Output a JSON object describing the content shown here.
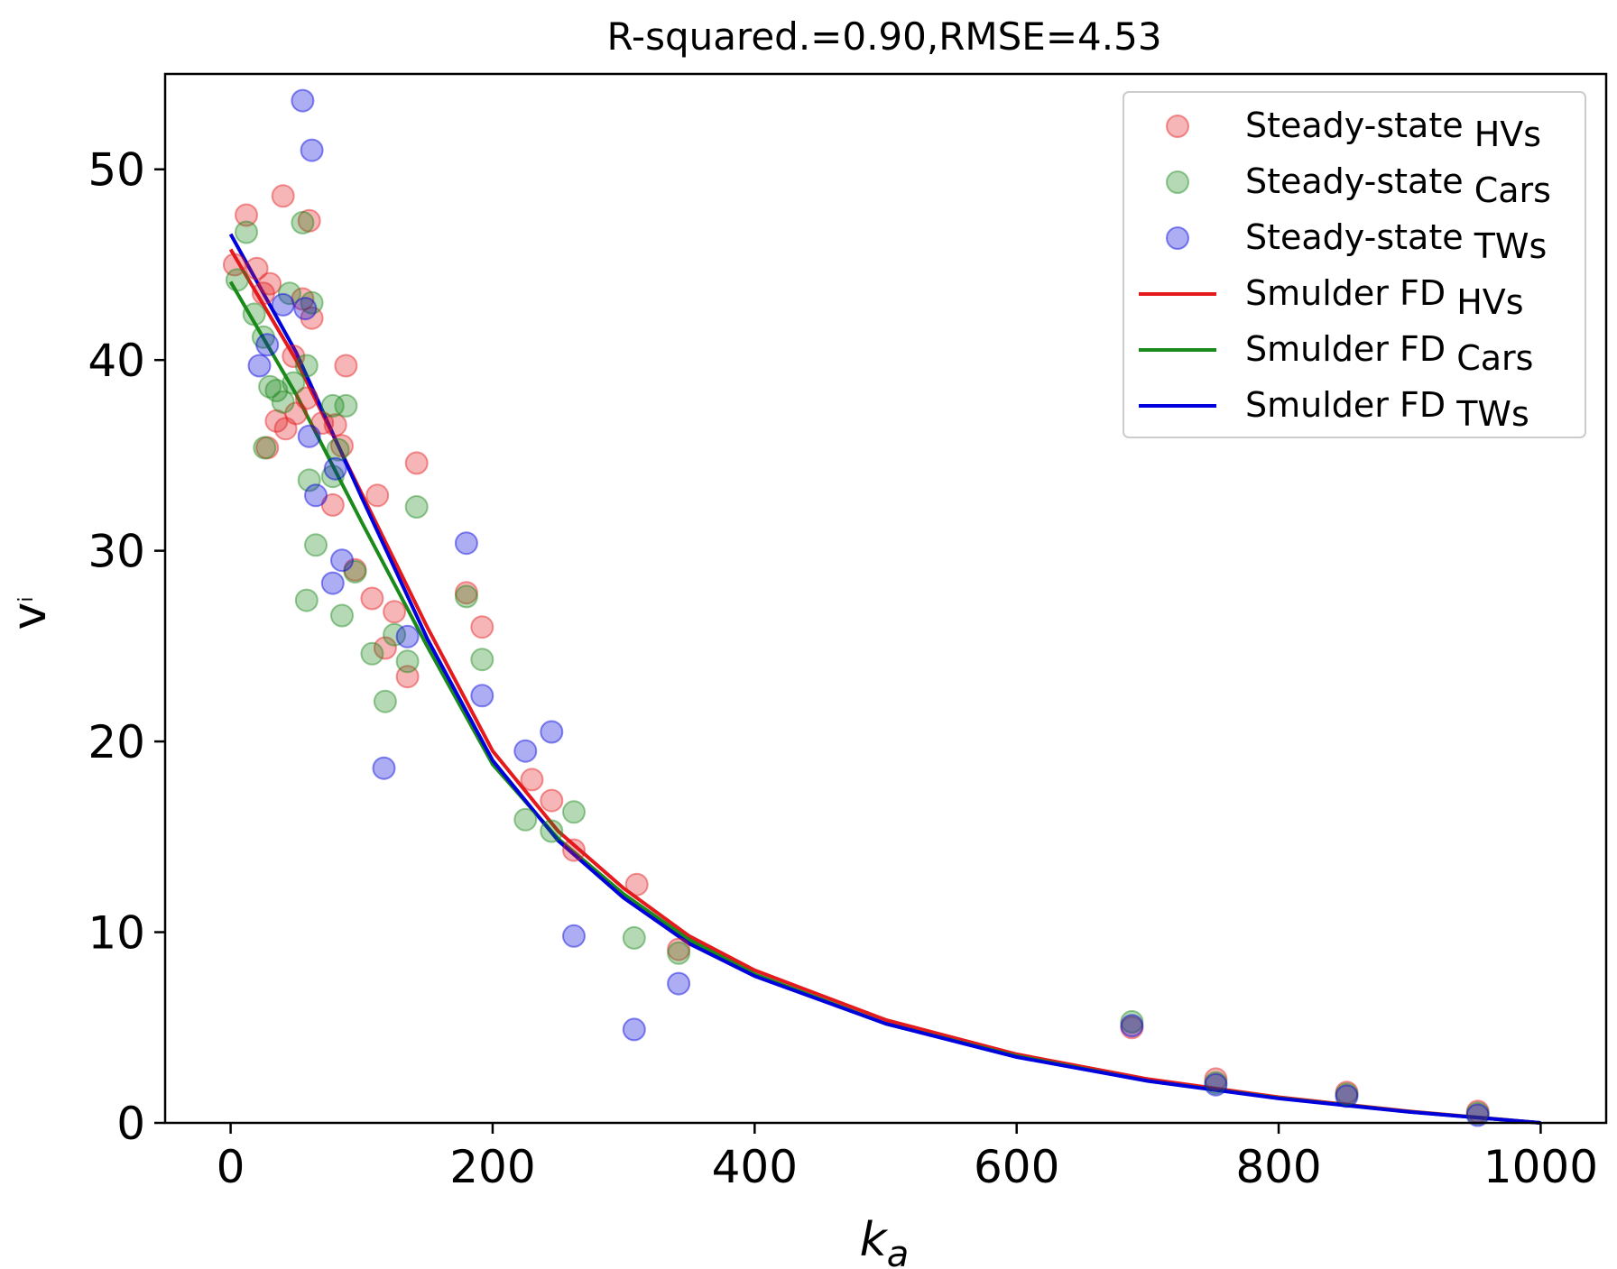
{
  "chart_data": {
    "type": "scatter",
    "title": "R-squared.=0.90,RMSE=4.53",
    "xlabel": {
      "base": "k",
      "sub": "a"
    },
    "ylabel": {
      "base": "v",
      "sub": "i"
    },
    "xlim": [
      -50,
      1050
    ],
    "ylim": [
      0,
      55
    ],
    "xticks": [
      0,
      200,
      400,
      600,
      800,
      1000
    ],
    "xtick_labels": [
      "0",
      "200",
      "400",
      "600",
      "800",
      "1000"
    ],
    "yticks": [
      0,
      10,
      20,
      30,
      40,
      50
    ],
    "ytick_labels": [
      "0",
      "10",
      "20",
      "30",
      "40",
      "50"
    ],
    "legend_position": "top-right",
    "colors": {
      "hv": "#e41a1c",
      "car": "#1a8a1a",
      "tw": "#0000dd"
    },
    "legend": [
      {
        "main": "Steady-state",
        "sub": "HVs",
        "kind": "marker",
        "series": "hv"
      },
      {
        "main": "Steady-state",
        "sub": "Cars",
        "kind": "marker",
        "series": "car"
      },
      {
        "main": "Steady-state",
        "sub": "TWs",
        "kind": "marker",
        "series": "tw"
      },
      {
        "main": "Smulder FD",
        "sub": "HVs",
        "kind": "line",
        "series": "hv"
      },
      {
        "main": "Smulder FD",
        "sub": "Cars",
        "kind": "line",
        "series": "car"
      },
      {
        "main": "Smulder FD",
        "sub": "TWs",
        "kind": "line",
        "series": "tw"
      }
    ],
    "scatter_series": [
      {
        "name": "Steady-state HVs",
        "key": "hv",
        "points": [
          [
            3,
            45
          ],
          [
            12,
            47.6
          ],
          [
            20,
            44.8
          ],
          [
            25,
            43.5
          ],
          [
            30,
            44
          ],
          [
            40,
            48.6
          ],
          [
            48,
            40.2
          ],
          [
            55,
            43.2
          ],
          [
            60,
            47.3
          ],
          [
            62,
            42.2
          ],
          [
            35,
            36.8
          ],
          [
            42,
            36.4
          ],
          [
            50,
            37.2
          ],
          [
            58,
            38
          ],
          [
            70,
            36.7
          ],
          [
            80,
            36.6
          ],
          [
            78,
            32.4
          ],
          [
            88,
            39.7
          ],
          [
            85,
            35.5
          ],
          [
            95,
            29
          ],
          [
            108,
            27.5
          ],
          [
            112,
            32.9
          ],
          [
            118,
            24.9
          ],
          [
            125,
            26.8
          ],
          [
            135,
            23.4
          ],
          [
            142,
            34.6
          ],
          [
            180,
            27.8
          ],
          [
            192,
            26
          ],
          [
            230,
            18
          ],
          [
            245,
            16.9
          ],
          [
            262,
            14.3
          ],
          [
            310,
            12.5
          ],
          [
            342,
            9.1
          ],
          [
            688,
            5
          ],
          [
            752,
            2.3
          ],
          [
            852,
            1.6
          ],
          [
            952,
            0.6
          ],
          [
            28,
            35.4
          ]
        ]
      },
      {
        "name": "Steady-state Cars",
        "key": "car",
        "points": [
          [
            5,
            44.2
          ],
          [
            12,
            46.7
          ],
          [
            18,
            42.4
          ],
          [
            25,
            41.2
          ],
          [
            30,
            38.6
          ],
          [
            40,
            37.8
          ],
          [
            45,
            43.5
          ],
          [
            55,
            47.2
          ],
          [
            58,
            39.7
          ],
          [
            62,
            43
          ],
          [
            35,
            38.4
          ],
          [
            48,
            38.8
          ],
          [
            60,
            33.7
          ],
          [
            65,
            30.3
          ],
          [
            58,
            27.4
          ],
          [
            78,
            33.9
          ],
          [
            78,
            37.6
          ],
          [
            82,
            35.3
          ],
          [
            85,
            26.6
          ],
          [
            88,
            37.6
          ],
          [
            95,
            28.9
          ],
          [
            108,
            24.6
          ],
          [
            118,
            22.1
          ],
          [
            125,
            25.6
          ],
          [
            135,
            24.2
          ],
          [
            142,
            32.3
          ],
          [
            180,
            27.6
          ],
          [
            192,
            24.3
          ],
          [
            225,
            15.9
          ],
          [
            245,
            15.3
          ],
          [
            262,
            16.3
          ],
          [
            308,
            9.7
          ],
          [
            342,
            8.9
          ],
          [
            688,
            5.3
          ],
          [
            752,
            2.1
          ],
          [
            852,
            1.5
          ],
          [
            952,
            0.5
          ],
          [
            26,
            35.4
          ]
        ]
      },
      {
        "name": "Steady-state TWs",
        "key": "tw",
        "points": [
          [
            55,
            53.6
          ],
          [
            62,
            51
          ],
          [
            22,
            39.7
          ],
          [
            28,
            40.8
          ],
          [
            40,
            42.9
          ],
          [
            57,
            42.7
          ],
          [
            60,
            36
          ],
          [
            65,
            32.9
          ],
          [
            78,
            28.3
          ],
          [
            80,
            34.3
          ],
          [
            85,
            29.5
          ],
          [
            135,
            25.5
          ],
          [
            117,
            18.6
          ],
          [
            180,
            30.4
          ],
          [
            192,
            22.4
          ],
          [
            225,
            19.5
          ],
          [
            245,
            20.5
          ],
          [
            262,
            9.8
          ],
          [
            308,
            4.9
          ],
          [
            342,
            7.3
          ],
          [
            688,
            5.1
          ],
          [
            752,
            2
          ],
          [
            852,
            1.4
          ],
          [
            952,
            0.4
          ]
        ]
      }
    ],
    "line_series": [
      {
        "name": "Smulder FD HVs",
        "key": "hv",
        "x": [
          0,
          50,
          100,
          150,
          200,
          250,
          300,
          350,
          400,
          500,
          600,
          700,
          800,
          900,
          1000
        ],
        "y": [
          45.8,
          40.0,
          33.0,
          26.0,
          19.5,
          15.3,
          12.3,
          9.8,
          8.0,
          5.4,
          3.6,
          2.3,
          1.35,
          0.6,
          0
        ]
      },
      {
        "name": "Smulder FD Cars",
        "key": "car",
        "x": [
          0,
          50,
          100,
          150,
          200,
          250,
          300,
          350,
          400,
          500,
          600,
          700,
          800,
          900,
          1000
        ],
        "y": [
          44.1,
          38.2,
          31.5,
          25.0,
          18.8,
          14.9,
          12.0,
          9.6,
          7.8,
          5.2,
          3.5,
          2.2,
          1.3,
          0.58,
          0
        ]
      },
      {
        "name": "Smulder FD TWs",
        "key": "tw",
        "x": [
          0,
          50,
          100,
          150,
          200,
          250,
          300,
          350,
          400,
          500,
          600,
          700,
          800,
          900,
          1000
        ],
        "y": [
          46.6,
          40.4,
          32.8,
          25.4,
          19.0,
          14.8,
          11.8,
          9.4,
          7.7,
          5.2,
          3.45,
          2.2,
          1.28,
          0.57,
          0
        ]
      }
    ]
  }
}
